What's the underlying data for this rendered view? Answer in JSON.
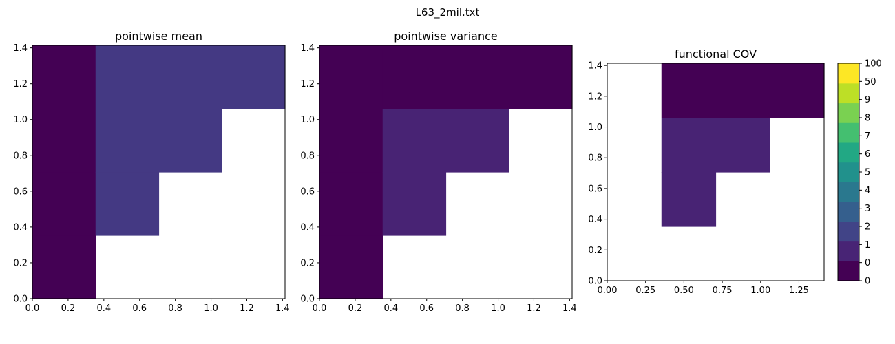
{
  "figure": {
    "suptitle": "L63_2mil.txt"
  },
  "colors": {
    "dark": "#440154",
    "mean_fill": "#443983",
    "var_fill": "#482374"
  },
  "chart_data": [
    {
      "type": "heatmap",
      "title": "pointwise mean",
      "xlim": [
        0,
        1.414
      ],
      "ylim": [
        0,
        1.414
      ],
      "xticks": [
        "0.0",
        "0.2",
        "0.4",
        "0.6",
        "0.8",
        "1.0",
        "1.2",
        "1.4"
      ],
      "yticks": [
        "0.0",
        "0.2",
        "0.4",
        "0.6",
        "0.8",
        "1.0",
        "1.2",
        "1.4"
      ],
      "cell_edges": [
        0,
        0.3535,
        0.707,
        1.0605,
        1.414
      ],
      "cells": [
        {
          "col": 0,
          "row": 0,
          "color": "#440154"
        },
        {
          "col": 0,
          "row": 1,
          "color": "#440154"
        },
        {
          "col": 0,
          "row": 2,
          "color": "#440154"
        },
        {
          "col": 0,
          "row": 3,
          "color": "#440154"
        },
        {
          "col": 1,
          "row": 1,
          "color": "#443983"
        },
        {
          "col": 1,
          "row": 2,
          "color": "#443983"
        },
        {
          "col": 1,
          "row": 3,
          "color": "#443983"
        },
        {
          "col": 2,
          "row": 2,
          "color": "#443983"
        },
        {
          "col": 2,
          "row": 3,
          "color": "#443983"
        },
        {
          "col": 3,
          "row": 3,
          "color": "#443983"
        }
      ]
    },
    {
      "type": "heatmap",
      "title": "pointwise variance",
      "xlim": [
        0,
        1.414
      ],
      "ylim": [
        0,
        1.414
      ],
      "xticks": [
        "0.0",
        "0.2",
        "0.4",
        "0.6",
        "0.8",
        "1.0",
        "1.2",
        "1.4"
      ],
      "yticks": [
        "0.0",
        "0.2",
        "0.4",
        "0.6",
        "0.8",
        "1.0",
        "1.2",
        "1.4"
      ],
      "cell_edges": [
        0,
        0.3535,
        0.707,
        1.0605,
        1.414
      ],
      "cells": [
        {
          "col": 0,
          "row": 0,
          "color": "#440154"
        },
        {
          "col": 0,
          "row": 1,
          "color": "#440154"
        },
        {
          "col": 0,
          "row": 2,
          "color": "#440154"
        },
        {
          "col": 0,
          "row": 3,
          "color": "#440154"
        },
        {
          "col": 1,
          "row": 1,
          "color": "#482374"
        },
        {
          "col": 1,
          "row": 2,
          "color": "#482374"
        },
        {
          "col": 1,
          "row": 3,
          "color": "#440154"
        },
        {
          "col": 2,
          "row": 2,
          "color": "#482374"
        },
        {
          "col": 2,
          "row": 3,
          "color": "#440154"
        },
        {
          "col": 3,
          "row": 3,
          "color": "#440154"
        }
      ]
    },
    {
      "type": "heatmap",
      "title": "functional COV",
      "xlim": [
        0,
        1.414
      ],
      "ylim": [
        0,
        1.414
      ],
      "xticks": [
        "0.00",
        "0.25",
        "0.50",
        "0.75",
        "1.00",
        "1.25"
      ],
      "yticks": [
        "0.0",
        "0.2",
        "0.4",
        "0.6",
        "0.8",
        "1.0",
        "1.2",
        "1.4"
      ],
      "cell_edges": [
        0,
        0.3535,
        0.707,
        1.0605,
        1.414
      ],
      "cells": [
        {
          "col": 1,
          "row": 1,
          "color": "#482374"
        },
        {
          "col": 1,
          "row": 2,
          "color": "#482374"
        },
        {
          "col": 1,
          "row": 3,
          "color": "#440154"
        },
        {
          "col": 2,
          "row": 2,
          "color": "#482374"
        },
        {
          "col": 2,
          "row": 3,
          "color": "#440154"
        },
        {
          "col": 3,
          "row": 3,
          "color": "#440154"
        }
      ],
      "colorbar": {
        "colors": [
          "#440154",
          "#482475",
          "#414487",
          "#355f8d",
          "#2a788e",
          "#21918c",
          "#22a884",
          "#44bf70",
          "#7ad151",
          "#bddf26",
          "#fde725"
        ],
        "labels": [
          "0",
          "0",
          "1",
          "2",
          "3",
          "4",
          "5",
          "6",
          "7",
          "8",
          "9",
          "50",
          "100"
        ]
      }
    }
  ]
}
